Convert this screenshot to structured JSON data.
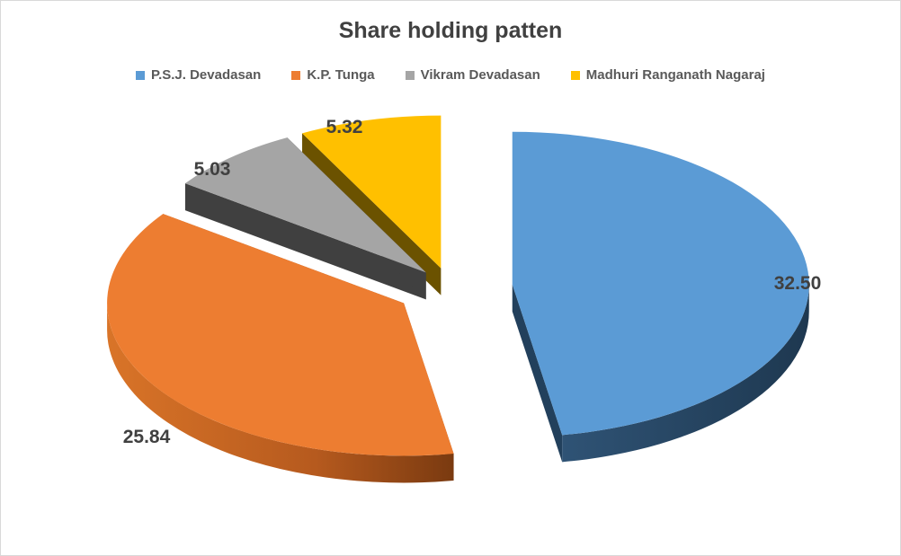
{
  "chart_data": {
    "type": "pie",
    "title": "Share holding patten",
    "legend_position": "top",
    "series": [
      {
        "name": "P.S.J. Devadasan",
        "value": 32.5,
        "label": "32.50",
        "color": "#5b9bd5",
        "side_color": "#22405c"
      },
      {
        "name": "K.P. Tunga",
        "value": 25.84,
        "label": "25.84",
        "color": "#ed7d31",
        "side_color": "#a0501c"
      },
      {
        "name": "Vikram Devadasan",
        "value": 5.03,
        "label": "5.03",
        "color": "#a5a5a5",
        "side_color": "#404040"
      },
      {
        "name": "Madhuri Ranganath Nagaraj",
        "value": 5.32,
        "label": "5.32",
        "color": "#ffc000",
        "side_color": "#6b5200"
      }
    ]
  }
}
